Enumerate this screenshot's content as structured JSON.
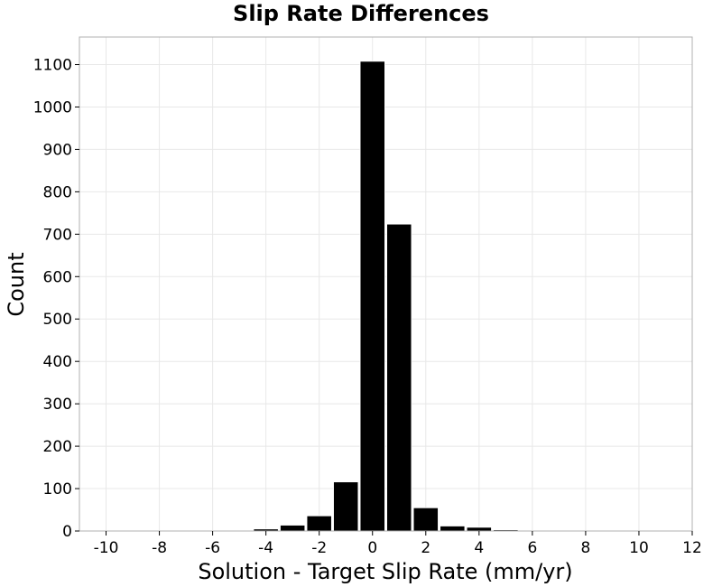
{
  "chart_data": {
    "type": "bar",
    "title": "Slip Rate Differences",
    "xlabel": "Solution - Target Slip Rate (mm/yr)",
    "ylabel": "Count",
    "xlim": [
      -11,
      12
    ],
    "ylim": [
      0,
      1165
    ],
    "grid": true,
    "x_ticks": [
      -10,
      -8,
      -6,
      -4,
      -2,
      0,
      2,
      4,
      6,
      8,
      10,
      12
    ],
    "x_tick_labels": [
      "-10",
      "-8",
      "-6",
      "-4",
      "-2",
      "0",
      "2",
      "4",
      "6",
      "8",
      "10",
      "12"
    ],
    "y_ticks": [
      0,
      100,
      200,
      300,
      400,
      500,
      600,
      700,
      800,
      900,
      1000,
      1100
    ],
    "y_tick_labels": [
      "0",
      "100",
      "200",
      "300",
      "400",
      "500",
      "600",
      "700",
      "800",
      "900",
      "1000",
      "1100"
    ],
    "bin_width": 1,
    "bins": [
      {
        "center": -6,
        "count": 1
      },
      {
        "center": -5,
        "count": 2
      },
      {
        "center": -4,
        "count": 5
      },
      {
        "center": -3,
        "count": 14
      },
      {
        "center": -2,
        "count": 36
      },
      {
        "center": -1,
        "count": 116
      },
      {
        "center": 0,
        "count": 1108
      },
      {
        "center": 1,
        "count": 724
      },
      {
        "center": 2,
        "count": 55
      },
      {
        "center": 3,
        "count": 12
      },
      {
        "center": 4,
        "count": 9
      },
      {
        "center": 5,
        "count": 3
      },
      {
        "center": 6,
        "count": 1
      },
      {
        "center": 7,
        "count": 2
      }
    ]
  }
}
